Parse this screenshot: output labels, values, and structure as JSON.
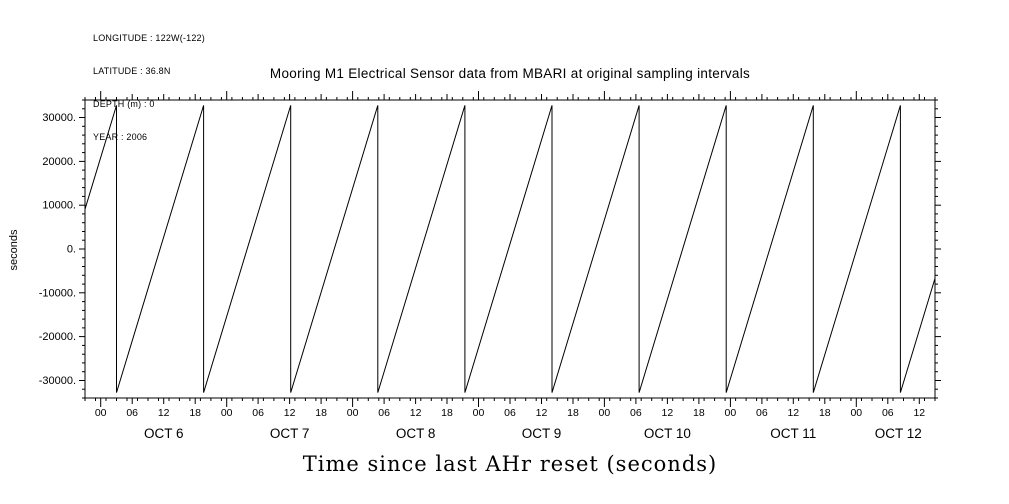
{
  "metadata": {
    "longitude": "LONGITUDE : 122W(-122)",
    "latitude": "LATITUDE : 36.8N",
    "depth": "DEPTH (m) : 0",
    "year": "YEAR : 2006"
  },
  "chart_data": {
    "type": "line",
    "title": "Mooring M1 Electrical Sensor data from MBARI at original sampling intervals",
    "xlabel": "Time since last AHr reset (seconds)",
    "ylabel": "seconds",
    "grid": "off",
    "legend": "none",
    "ylim": [
      -34000,
      34000
    ],
    "y_major_ticks": [
      30000,
      20000,
      10000,
      0,
      -10000,
      -20000,
      -30000
    ],
    "y_tick_labels": [
      "30000.",
      "20000.",
      "10000.",
      "0.",
      "-10000.",
      "-20000.",
      "-30000."
    ],
    "y_minor_step": 2000,
    "x_hours": [
      0,
      162
    ],
    "x_minor_step_hours": 2,
    "x_major_ticks": [
      {
        "hour": 3,
        "label": "00"
      },
      {
        "hour": 9,
        "label": "06"
      },
      {
        "hour": 15,
        "label": "12"
      },
      {
        "hour": 21,
        "label": "18"
      },
      {
        "hour": 27,
        "label": "00"
      },
      {
        "hour": 33,
        "label": "06"
      },
      {
        "hour": 39,
        "label": "12"
      },
      {
        "hour": 45,
        "label": "18"
      },
      {
        "hour": 51,
        "label": "00"
      },
      {
        "hour": 57,
        "label": "06"
      },
      {
        "hour": 63,
        "label": "12"
      },
      {
        "hour": 69,
        "label": "18"
      },
      {
        "hour": 75,
        "label": "00"
      },
      {
        "hour": 81,
        "label": "06"
      },
      {
        "hour": 87,
        "label": "12"
      },
      {
        "hour": 93,
        "label": "18"
      },
      {
        "hour": 99,
        "label": "00"
      },
      {
        "hour": 105,
        "label": "06"
      },
      {
        "hour": 111,
        "label": "12"
      },
      {
        "hour": 117,
        "label": "18"
      },
      {
        "hour": 123,
        "label": "00"
      },
      {
        "hour": 129,
        "label": "06"
      },
      {
        "hour": 135,
        "label": "12"
      },
      {
        "hour": 141,
        "label": "18"
      },
      {
        "hour": 147,
        "label": "00"
      },
      {
        "hour": 153,
        "label": "06"
      },
      {
        "hour": 159,
        "label": "12"
      }
    ],
    "day_labels": [
      {
        "hour": 15,
        "label": "OCT 6"
      },
      {
        "hour": 39,
        "label": "OCT 7"
      },
      {
        "hour": 63,
        "label": "OCT 8"
      },
      {
        "hour": 87,
        "label": "OCT 9"
      },
      {
        "hour": 111,
        "label": "OCT 10"
      },
      {
        "hour": 135,
        "label": "OCT 11"
      },
      {
        "hour": 155,
        "label": "OCT 12"
      }
    ],
    "series": [
      {
        "name": "seconds since last AHr reset",
        "waveform": "sawtooth",
        "y_min": -32768,
        "y_max": 32767,
        "period_hours": 16.6,
        "start_value": 9079,
        "end_value": -6711,
        "peak_hours": [
          6.0,
          22.6,
          39.2,
          55.8,
          72.4,
          89.0,
          105.6,
          122.2,
          138.8,
          155.4
        ]
      }
    ]
  }
}
